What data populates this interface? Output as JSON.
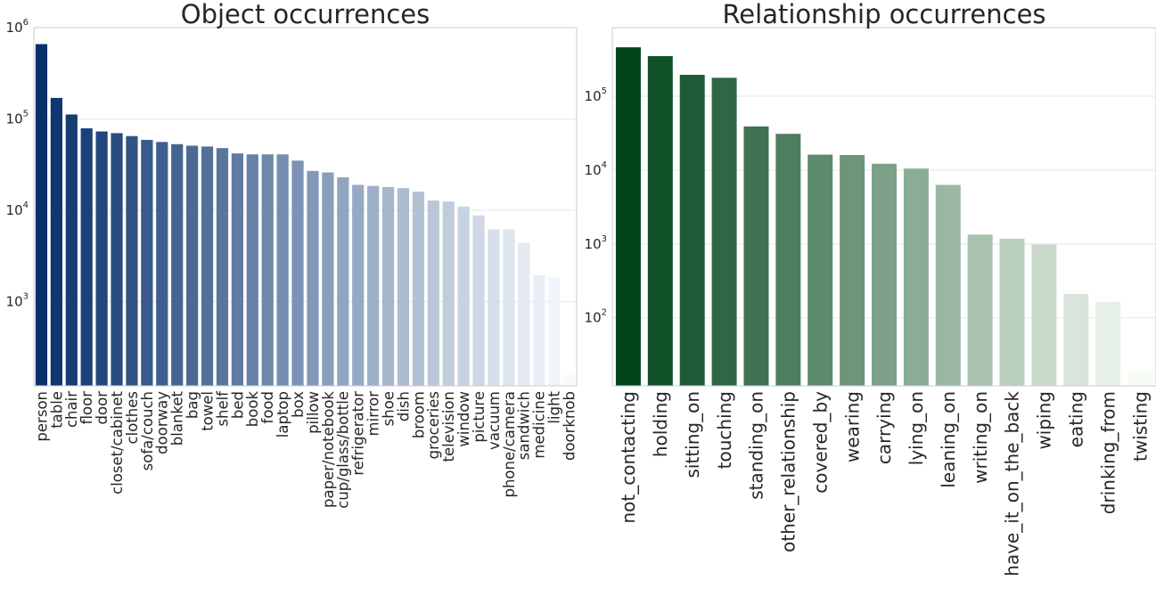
{
  "chart_data": [
    {
      "type": "bar",
      "title": "Object occurrences",
      "xlabel": "",
      "ylabel": "",
      "yscale": "log",
      "ylim": [
        120,
        1000000
      ],
      "yticks": [
        1000,
        10000,
        100000,
        1000000
      ],
      "ytick_labels": [
        {
          "base": "10",
          "exp": "3"
        },
        {
          "base": "10",
          "exp": "4"
        },
        {
          "base": "10",
          "exp": "5"
        },
        {
          "base": "10",
          "exp": "6"
        }
      ],
      "grid": true,
      "palette": "Blues_r",
      "color_dark": "#08306b",
      "color_light": "#f7fbff",
      "categories": [
        "person",
        "table",
        "chair",
        "floor",
        "door",
        "closet/cabinet",
        "clothes",
        "sofa/couch",
        "doorway",
        "blanket",
        "bag",
        "towel",
        "shelf",
        "bed",
        "book",
        "food",
        "laptop",
        "box",
        "pillow",
        "paper/notebook",
        "cup/glass/bottle",
        "refrigerator",
        "mirror",
        "shoe",
        "dish",
        "broom",
        "groceries",
        "television",
        "window",
        "picture",
        "vacuum",
        "phone/camera",
        "sandwich",
        "medicine",
        "light",
        "doorknob"
      ],
      "values": [
        660000,
        170000,
        112000,
        79000,
        73000,
        70000,
        65000,
        59000,
        56000,
        53000,
        51000,
        50000,
        48000,
        42000,
        41000,
        41000,
        41000,
        35000,
        27000,
        26000,
        23000,
        19000,
        18500,
        18000,
        17500,
        16000,
        12800,
        12500,
        11000,
        8800,
        6200,
        6200,
        4400,
        1950,
        1850,
        160
      ]
    },
    {
      "type": "bar",
      "title": "Relationship occurrences",
      "xlabel": "",
      "ylabel": "",
      "yscale": "log",
      "ylim": [
        12,
        850000
      ],
      "yticks": [
        100,
        1000,
        10000,
        100000
      ],
      "ytick_labels": [
        {
          "base": "10",
          "exp": "2"
        },
        {
          "base": "10",
          "exp": "3"
        },
        {
          "base": "10",
          "exp": "4"
        },
        {
          "base": "10",
          "exp": "5"
        }
      ],
      "grid": true,
      "palette": "Greens_r",
      "color_dark": "#00441b",
      "color_light": "#f7fcf5",
      "categories": [
        "not_contacting",
        "holding",
        "sitting_on",
        "touching",
        "standing_on",
        "other_relationship",
        "covered_by",
        "wearing",
        "carrying",
        "lying_on",
        "leaning_on",
        "writing_on",
        "have_it_on_the_back",
        "wiping",
        "eating",
        "drinking_from",
        "twisting"
      ],
      "values": [
        460000,
        350000,
        195000,
        178000,
        39000,
        31000,
        16200,
        16000,
        12200,
        10500,
        6300,
        1340,
        1180,
        980,
        210,
        165,
        19
      ]
    }
  ]
}
